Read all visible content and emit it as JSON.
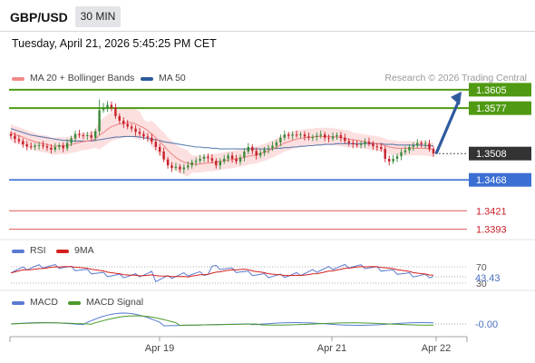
{
  "header": {
    "pair": "GBP/USD",
    "timeframe": "30 MIN",
    "timestamp": "Tuesday, April 21, 2026 5:45:25 PM CET"
  },
  "legend": {
    "ma20": {
      "label": "MA 20 + Bollinger Bands",
      "color": "#f08a8a"
    },
    "ma50": {
      "label": "MA 50",
      "color": "#2e5a9a"
    },
    "credit": "Research © 2026 Trading Central"
  },
  "colors": {
    "bull": "#3a8a3a",
    "bear": "#c8202a",
    "resistance": "#4f9a12",
    "support": "#3b6fd4",
    "red_level": "#e0585a",
    "current": "#333333",
    "arrow": "#2f5a9e"
  },
  "chart_data": [
    {
      "type": "candlestick",
      "title": "GBP/USD 30 MIN",
      "x_ticks": [
        "Apr 19",
        "Apr 21",
        "Apr 22"
      ],
      "ylim": [
        1.338,
        1.362
      ],
      "current_price": "1.3508",
      "levels": [
        {
          "value": 1.3605,
          "label": "1.3605",
          "kind": "resistance"
        },
        {
          "value": 1.3577,
          "label": "1.3577",
          "kind": "resistance"
        },
        {
          "value": 1.3508,
          "label": "1.3508",
          "kind": "current"
        },
        {
          "value": 1.3468,
          "label": "1.3468",
          "kind": "support"
        },
        {
          "value": 1.3421,
          "label": "1.3421",
          "kind": "minor"
        },
        {
          "value": 1.3393,
          "label": "1.3393",
          "kind": "minor"
        }
      ],
      "close": [
        1.3535,
        1.353,
        1.3527,
        1.3522,
        1.3519,
        1.3518,
        1.352,
        1.3521,
        1.3519,
        1.3517,
        1.3514,
        1.3518,
        1.352,
        1.3516,
        1.3524,
        1.3531,
        1.3538,
        1.3536,
        1.3535,
        1.3536,
        1.3532,
        1.3542,
        1.3574,
        1.3576,
        1.3582,
        1.3578,
        1.3565,
        1.3558,
        1.3553,
        1.3549,
        1.3546,
        1.3541,
        1.3538,
        1.3534,
        1.3532,
        1.3526,
        1.3518,
        1.3511,
        1.3499,
        1.349,
        1.3486,
        1.3488,
        1.3484,
        1.3487,
        1.349,
        1.3495,
        1.3497,
        1.35,
        1.3503,
        1.3501,
        1.3497,
        1.349,
        1.3496,
        1.35,
        1.3505,
        1.35,
        1.3496,
        1.3502,
        1.3511,
        1.3518,
        1.3512,
        1.3505,
        1.3509,
        1.3514,
        1.3516,
        1.352,
        1.3525,
        1.3532,
        1.3537,
        1.3535,
        1.3537,
        1.3536,
        1.3537,
        1.3534,
        1.3532,
        1.3533,
        1.3535,
        1.3537,
        1.3532,
        1.3531,
        1.3534,
        1.3536,
        1.3532,
        1.3527,
        1.3524,
        1.3522,
        1.3521,
        1.3523,
        1.3526,
        1.3523,
        1.3519,
        1.3518,
        1.3515,
        1.35,
        1.3496,
        1.35,
        1.3504,
        1.351,
        1.3513,
        1.3518,
        1.352,
        1.3524,
        1.3522,
        1.3523,
        1.3515,
        1.3508
      ],
      "ma20": [
        1.354,
        1.3537,
        1.3535,
        1.3533,
        1.353,
        1.3528,
        1.3526,
        1.3524,
        1.3523,
        1.3522,
        1.352,
        1.3519,
        1.352,
        1.352,
        1.352,
        1.3522,
        1.3523,
        1.3525,
        1.3526,
        1.3527,
        1.3528,
        1.353,
        1.3536,
        1.354,
        1.3545,
        1.3549,
        1.3551,
        1.3553,
        1.3554,
        1.3555,
        1.3555,
        1.3553,
        1.355,
        1.3547,
        1.3543,
        1.3538,
        1.3532,
        1.3526,
        1.352,
        1.3513,
        1.3507,
        1.3502,
        1.3498,
        1.3495,
        1.3493,
        1.3492,
        1.3492,
        1.3492,
        1.3493,
        1.3494,
        1.3494,
        1.3495,
        1.3496,
        1.3497,
        1.3498,
        1.3499,
        1.35,
        1.3501,
        1.3502,
        1.3504,
        1.3505,
        1.3506,
        1.3508,
        1.351,
        1.3512,
        1.3515,
        1.3518,
        1.3521,
        1.3524,
        1.3526,
        1.3528,
        1.353,
        1.3531,
        1.3532,
        1.3533,
        1.3533,
        1.3534,
        1.3534,
        1.3534,
        1.3534,
        1.3534,
        1.3533,
        1.3532,
        1.3531,
        1.353,
        1.3529,
        1.3528,
        1.3527,
        1.3526,
        1.3525,
        1.3524,
        1.3523,
        1.3522,
        1.352,
        1.3518,
        1.3517,
        1.3516,
        1.3516,
        1.3516,
        1.3516,
        1.3516,
        1.3516,
        1.3516,
        1.3516,
        1.3515,
        1.3514
      ],
      "ma50": [
        1.3546,
        1.3544,
        1.3542,
        1.354,
        1.3538,
        1.3536,
        1.3535,
        1.3534,
        1.3533,
        1.3532,
        1.3531,
        1.353,
        1.3529,
        1.3528,
        1.3528,
        1.3527,
        1.3527,
        1.3527,
        1.3527,
        1.3527,
        1.3527,
        1.3528,
        1.3529,
        1.353,
        1.3531,
        1.3532,
        1.3533,
        1.3533,
        1.3534,
        1.3534,
        1.3534,
        1.3534,
        1.3533,
        1.3532,
        1.3531,
        1.353,
        1.3529,
        1.3528,
        1.3526,
        1.3525,
        1.3524,
        1.3523,
        1.3522,
        1.3521,
        1.352,
        1.3519,
        1.3518,
        1.3518,
        1.3517,
        1.3517,
        1.3516,
        1.3516,
        1.3515,
        1.3515,
        1.3515,
        1.3515,
        1.3515,
        1.3515,
        1.3515,
        1.3515,
        1.3515,
        1.3515,
        1.3515,
        1.3515,
        1.3515,
        1.3515,
        1.3516,
        1.3516,
        1.3517,
        1.3517,
        1.3518,
        1.3518,
        1.3519,
        1.3519,
        1.352,
        1.352,
        1.3521,
        1.3521,
        1.3522,
        1.3522,
        1.3522,
        1.3523,
        1.3523,
        1.3523,
        1.3523,
        1.3523,
        1.3523,
        1.3523,
        1.3523,
        1.3523,
        1.3523,
        1.3523,
        1.3523,
        1.3522,
        1.3522,
        1.3522,
        1.3521,
        1.3521,
        1.3521,
        1.3521,
        1.3521,
        1.3521,
        1.3521,
        1.352,
        1.352,
        1.352
      ],
      "projection": {
        "from": 1.3508,
        "to": 1.3605
      }
    },
    {
      "type": "line",
      "title": "RSI",
      "series": [
        {
          "name": "RSI",
          "color": "#5a7bd0"
        },
        {
          "name": "9MA",
          "color": "#d42020"
        }
      ],
      "levels": [
        70,
        30
      ],
      "current_value": "43.43",
      "level_labels": [
        "70",
        "30"
      ]
    },
    {
      "type": "line",
      "title": "MACD",
      "series": [
        {
          "name": "MACD",
          "color": "#5a7bd0"
        },
        {
          "name": "MACD Signal",
          "color": "#4a9a2a"
        }
      ],
      "current_value": "-0.00"
    }
  ]
}
